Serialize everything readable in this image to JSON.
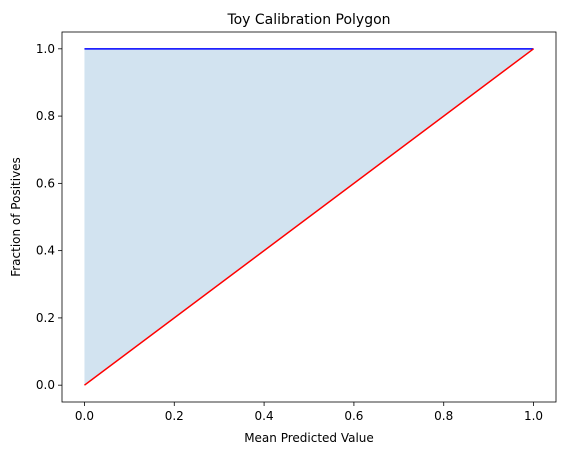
{
  "chart_data": {
    "type": "area",
    "title": "Toy Calibration Polygon",
    "xlabel": "Mean Predicted Value",
    "ylabel": "Fraction of Positives",
    "xlim": [
      -0.05,
      1.05
    ],
    "ylim": [
      -0.05,
      1.05
    ],
    "xticks": [
      0.0,
      0.2,
      0.4,
      0.6,
      0.8,
      1.0
    ],
    "yticks": [
      0.0,
      0.2,
      0.4,
      0.6,
      0.8,
      1.0
    ],
    "xtick_labels": [
      "0.0",
      "0.2",
      "0.4",
      "0.6",
      "0.8",
      "1.0"
    ],
    "ytick_labels": [
      "0.0",
      "0.2",
      "0.4",
      "0.6",
      "0.8",
      "1.0"
    ],
    "grid": false,
    "series": [
      {
        "kind": "line",
        "color": "#0000ff",
        "x": [
          0.0,
          1.0
        ],
        "y": [
          1.0,
          1.0
        ]
      },
      {
        "kind": "line",
        "color": "#ff0000",
        "x": [
          0.0,
          1.0
        ],
        "y": [
          0.0,
          1.0
        ]
      }
    ],
    "fill": {
      "color": "#d2e3f0",
      "x": [
        0.0,
        1.0,
        0.0
      ],
      "y": [
        1.0,
        1.0,
        0.0
      ]
    }
  }
}
